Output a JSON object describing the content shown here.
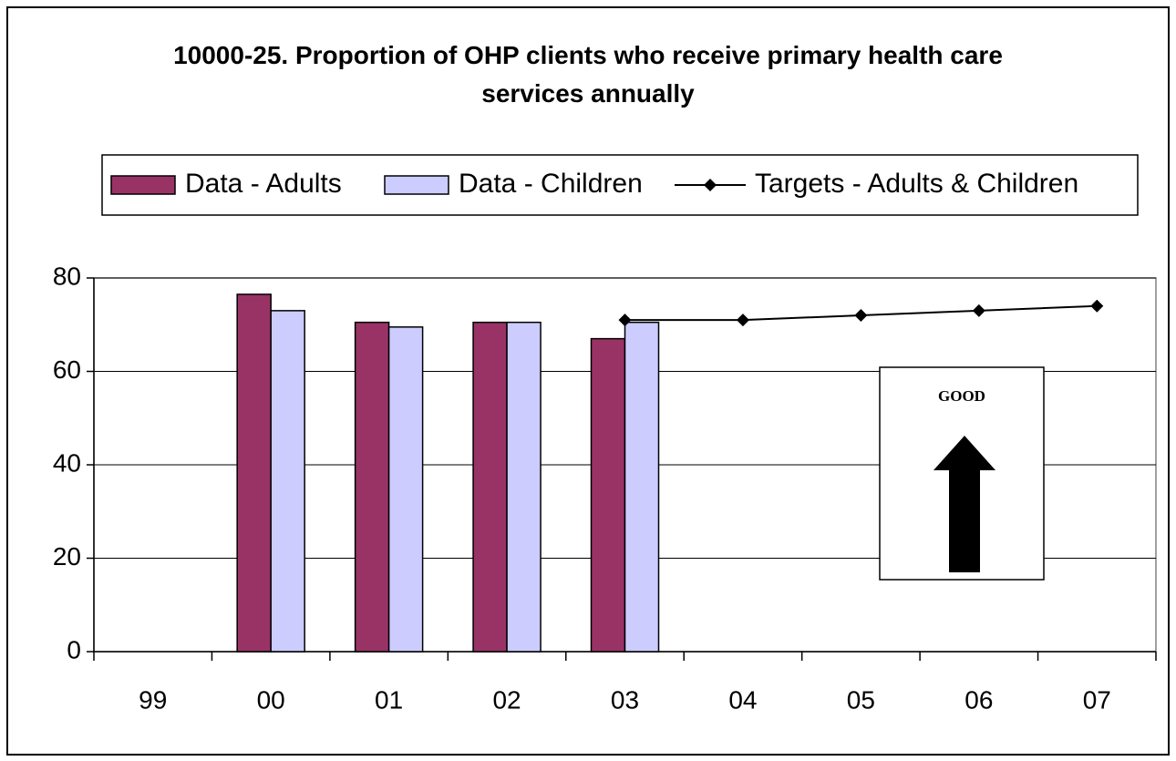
{
  "chart_data": {
    "type": "bar",
    "title": "10000-25. Proportion of OHP clients who receive primary health care services annually",
    "categories": [
      "99",
      "00",
      "01",
      "02",
      "03",
      "04",
      "05",
      "06",
      "07"
    ],
    "series": [
      {
        "name": "Data - Adults",
        "type": "bar",
        "color": "#993366",
        "values": [
          null,
          76.5,
          70.5,
          70.5,
          67,
          null,
          null,
          null,
          null
        ]
      },
      {
        "name": "Data - Children",
        "type": "bar",
        "color": "#ccccff",
        "values": [
          null,
          73,
          69.5,
          70.5,
          70.5,
          null,
          null,
          null,
          null
        ]
      },
      {
        "name": "Targets - Adults & Children",
        "type": "line",
        "color": "#000000",
        "values": [
          null,
          null,
          null,
          null,
          71,
          71,
          72,
          73,
          74
        ]
      }
    ],
    "ylim": [
      0,
      80
    ],
    "yticks": [
      0,
      20,
      40,
      60,
      80
    ],
    "grid": true,
    "annotation": "GOOD"
  }
}
